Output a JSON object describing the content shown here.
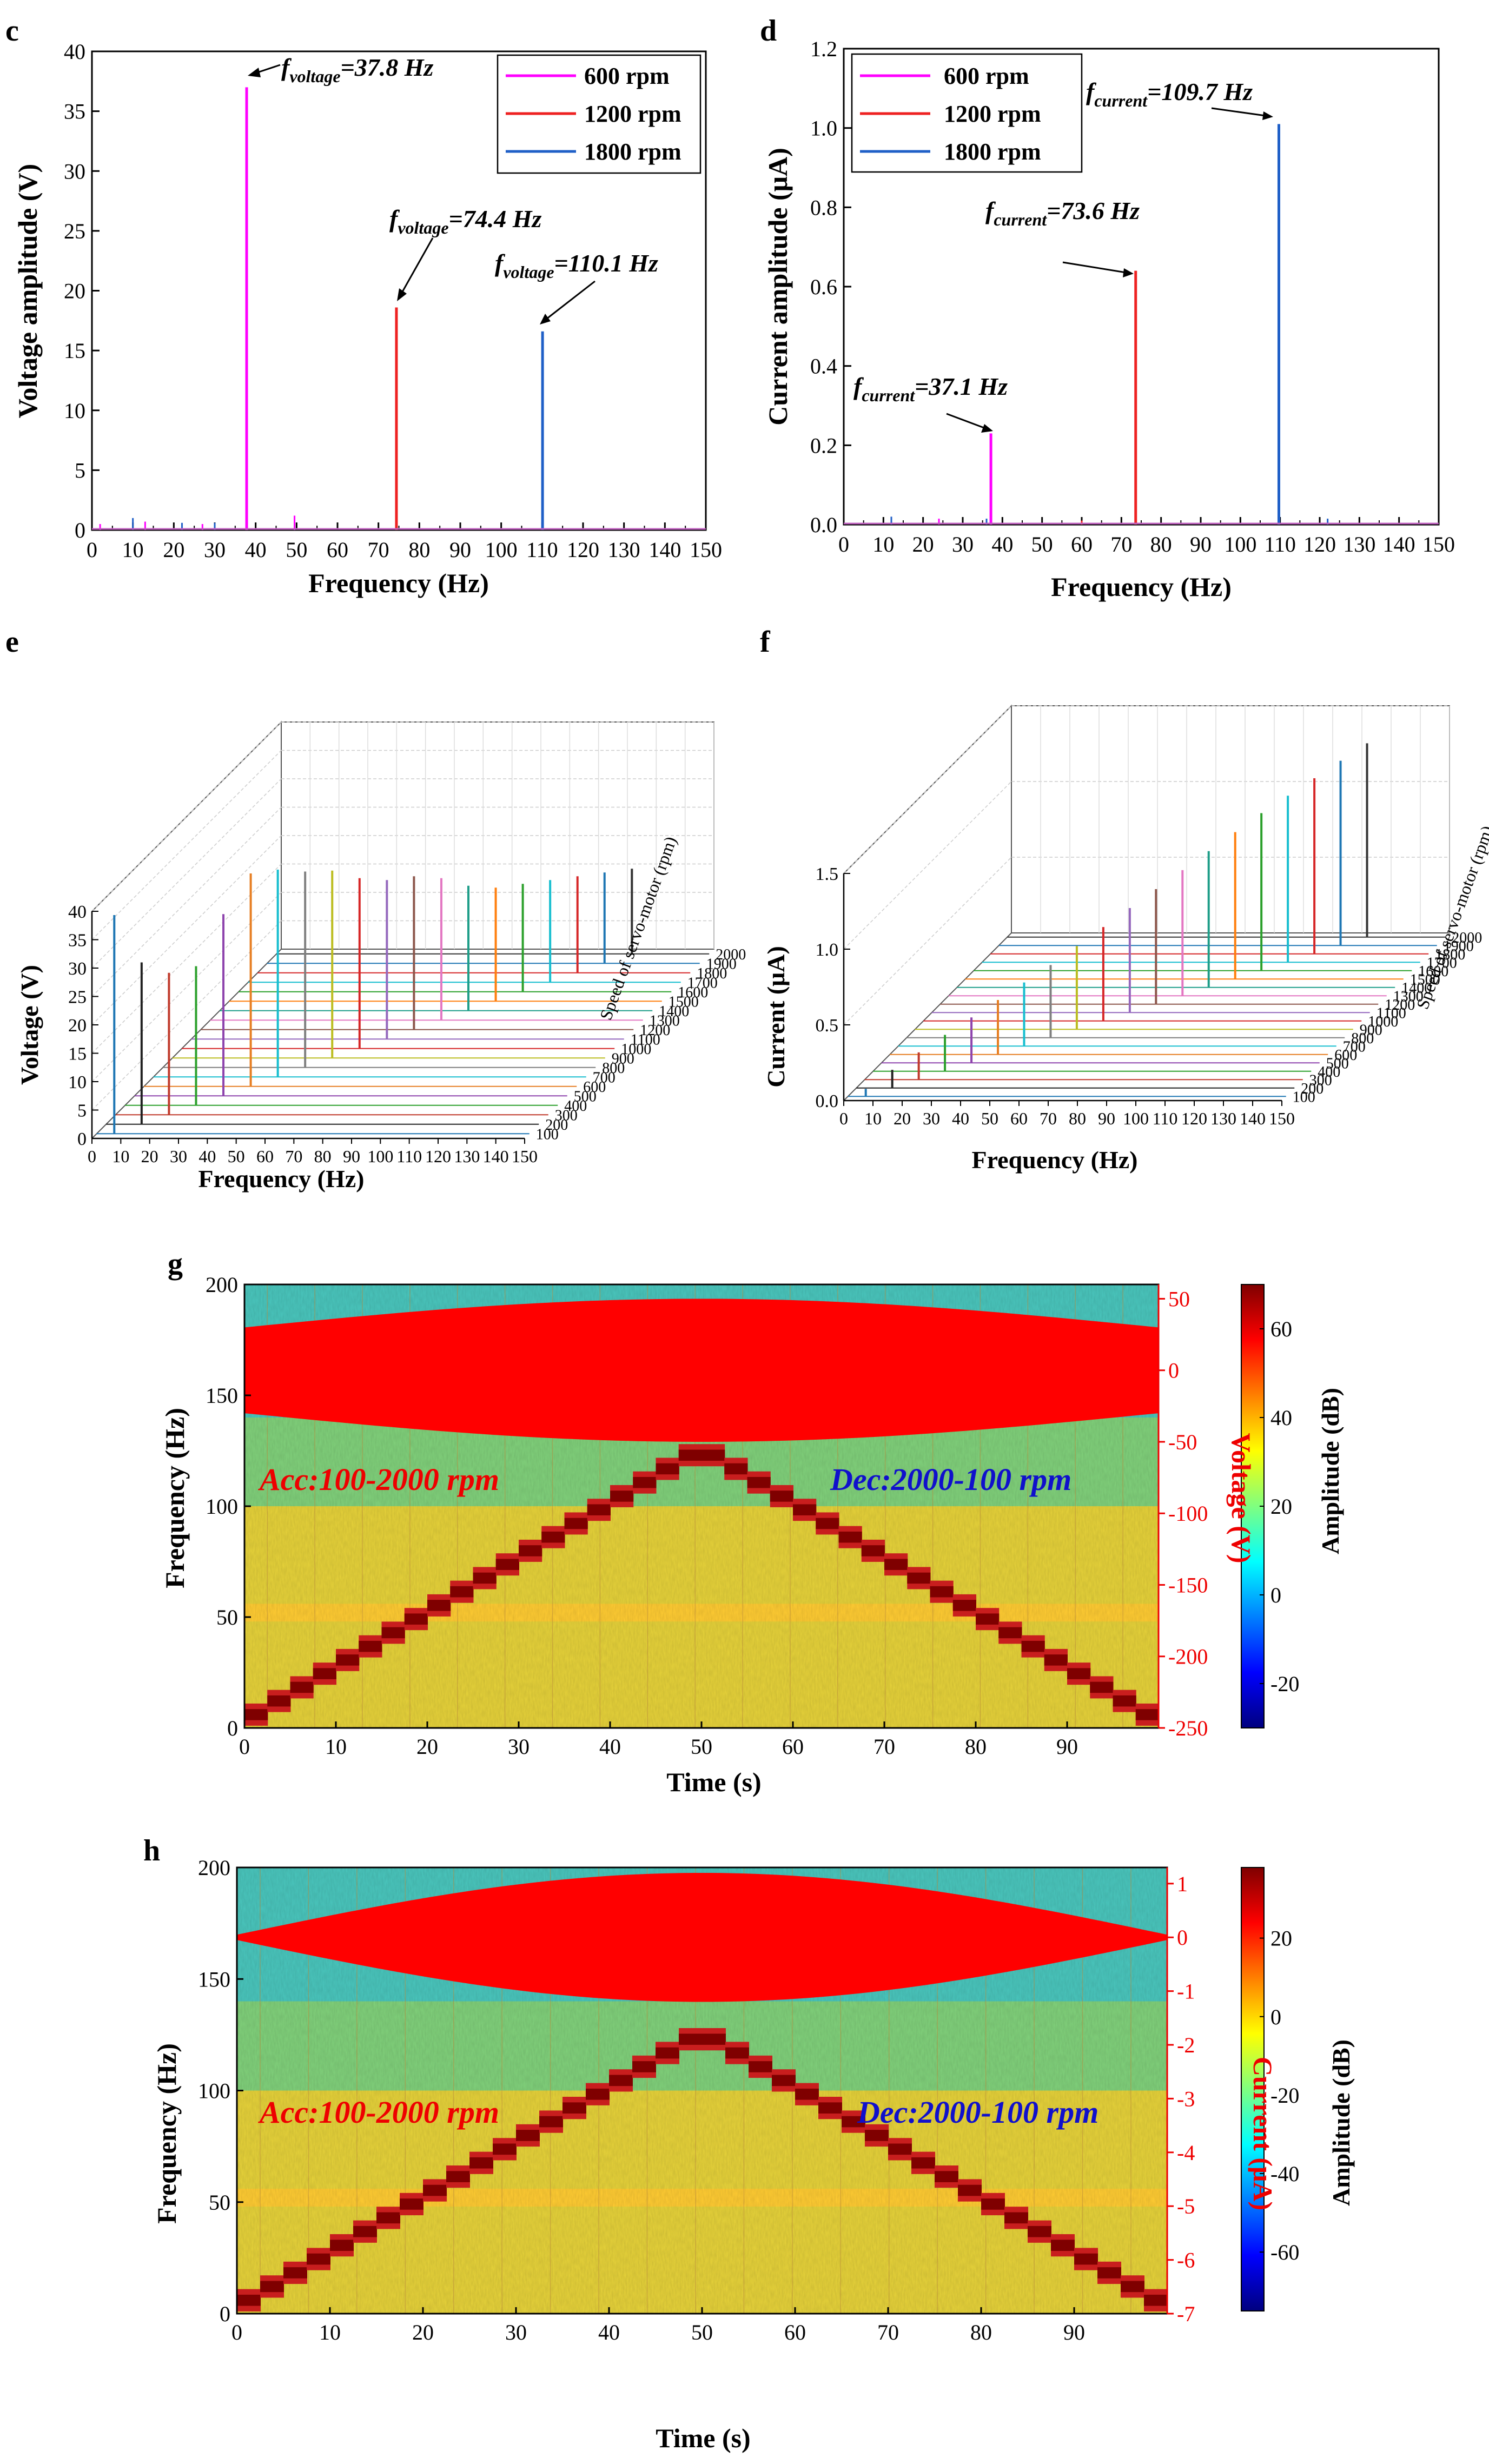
{
  "chart_data": [
    {
      "id": "c",
      "type": "line",
      "panel_label": "c",
      "xlabel": "Frequency (Hz)",
      "ylabel": "Voltage amplitude (V)",
      "xlim": [
        0,
        150
      ],
      "ylim": [
        0,
        40
      ],
      "xticks": [
        "0",
        "10",
        "20",
        "30",
        "40",
        "50",
        "60",
        "70",
        "80",
        "90",
        "100",
        "110",
        "120",
        "130",
        "140",
        "150"
      ],
      "yticks": [
        "0",
        "5",
        "10",
        "15",
        "20",
        "25",
        "30",
        "35",
        "40"
      ],
      "legend": "top-right",
      "series": [
        {
          "name": "600 rpm",
          "color": "#ff00ff",
          "peak_x": 37.8,
          "peak_y": 37.0
        },
        {
          "name": "1200 rpm",
          "color": "#ee2222",
          "peak_x": 74.4,
          "peak_y": 18.6
        },
        {
          "name": "1800 rpm",
          "color": "#1f5fc7",
          "peak_x": 110.1,
          "peak_y": 16.6
        }
      ],
      "noise": [
        {
          "x": 2,
          "y": 0.5,
          "color": "#ff00ff"
        },
        {
          "x": 10,
          "y": 1.0,
          "color": "#1f5fc7"
        },
        {
          "x": 13,
          "y": 0.7,
          "color": "#ff00ff"
        },
        {
          "x": 22,
          "y": 0.6,
          "color": "#1f5fc7"
        },
        {
          "x": 27,
          "y": 0.5,
          "color": "#ff00ff"
        },
        {
          "x": 30,
          "y": 0.6,
          "color": "#1f5fc7"
        },
        {
          "x": 49.5,
          "y": 1.2,
          "color": "#ff00ff"
        }
      ],
      "annotations": [
        {
          "base": "f",
          "sub": "voltage",
          "value": "=37.8 Hz"
        },
        {
          "base": "f",
          "sub": "voltage",
          "value": "=74.4 Hz"
        },
        {
          "base": "f",
          "sub": "voltage",
          "value": "=110.1 Hz"
        }
      ]
    },
    {
      "id": "d",
      "type": "line",
      "panel_label": "d",
      "xlabel": "Frequency (Hz)",
      "ylabel": "Current amplitude (μA)",
      "xlim": [
        0,
        150
      ],
      "ylim": [
        0,
        1.2
      ],
      "xticks": [
        "0",
        "10",
        "20",
        "30",
        "40",
        "50",
        "60",
        "70",
        "80",
        "90",
        "100",
        "110",
        "120",
        "130",
        "140",
        "150"
      ],
      "yticks": [
        "0.0",
        "0.2",
        "0.4",
        "0.6",
        "0.8",
        "1.0",
        "1.2"
      ],
      "legend": "top-left",
      "series": [
        {
          "name": "600 rpm",
          "color": "#ff00ff",
          "peak_x": 37.1,
          "peak_y": 0.23
        },
        {
          "name": "1200 rpm",
          "color": "#ee2222",
          "peak_x": 73.6,
          "peak_y": 0.64
        },
        {
          "name": "1800 rpm",
          "color": "#1f5fc7",
          "peak_x": 109.7,
          "peak_y": 1.01
        }
      ],
      "noise": [
        {
          "x": 12,
          "y": 0.02,
          "color": "#1f5fc7"
        },
        {
          "x": 24,
          "y": 0.015,
          "color": "#ff00ff"
        },
        {
          "x": 36,
          "y": 0.015,
          "color": "#1f5fc7"
        },
        {
          "x": 60,
          "y": 0.01,
          "color": "#ee2222"
        },
        {
          "x": 122,
          "y": 0.015,
          "color": "#1f5fc7"
        }
      ],
      "annotations": [
        {
          "base": "f",
          "sub": "current",
          "value": "=37.1 Hz"
        },
        {
          "base": "f",
          "sub": "current",
          "value": "=73.6 Hz"
        },
        {
          "base": "f",
          "sub": "current",
          "value": "=109.7 Hz"
        }
      ]
    },
    {
      "id": "e",
      "type": "line",
      "subtype": "3d-waterfall",
      "panel_label": "e",
      "xlabel": "Frequency (Hz)",
      "ylabel": "Voltage (V)",
      "zlabel": "Speed of servo-motor (rpm)",
      "xlim": [
        0,
        150
      ],
      "ylim": [
        0,
        40
      ],
      "xticks": [
        "0",
        "10",
        "20",
        "30",
        "40",
        "50",
        "60",
        "70",
        "80",
        "90",
        "100",
        "110",
        "120",
        "130",
        "140",
        "150"
      ],
      "yticks": [
        "0",
        "5",
        "10",
        "15",
        "20",
        "25",
        "30",
        "35",
        "40"
      ],
      "speeds": [
        "100",
        "200",
        "300",
        "400",
        "500",
        "600",
        "700",
        "800",
        "900",
        "1000",
        "1100",
        "1200",
        "1300",
        "1400",
        "1500",
        "1600",
        "1700",
        "1800",
        "1900",
        "2000"
      ],
      "peak_freq_hz": [
        6.1,
        12.3,
        18.5,
        24.6,
        30.8,
        37.0,
        43.1,
        49.3,
        55.4,
        61.6,
        67.8,
        73.9,
        80.1,
        86.2,
        92.4,
        98.5,
        104.7,
        110.9,
        117.0,
        123.2
      ],
      "peak_amp": [
        38.5,
        28.5,
        25.0,
        24.5,
        32.0,
        37.5,
        36.5,
        34.5,
        33.0,
        30.0,
        28.0,
        27.0,
        25.0,
        22.0,
        20.0,
        19.0,
        18.0,
        17.0,
        16.0,
        15.0
      ]
    },
    {
      "id": "f",
      "type": "line",
      "subtype": "3d-waterfall",
      "panel_label": "f",
      "xlabel": "Frequency (Hz)",
      "ylabel": "Current (μA)",
      "zlabel": "Speed of servo-motor (rpm)",
      "xlim": [
        0,
        150
      ],
      "ylim": [
        0,
        1.5
      ],
      "xticks": [
        "0",
        "10",
        "20",
        "30",
        "40",
        "50",
        "60",
        "70",
        "80",
        "90",
        "100",
        "110",
        "120",
        "130",
        "140",
        "150"
      ],
      "yticks": [
        "0.0",
        "0.5",
        "1.0",
        "1.5"
      ],
      "speeds": [
        "100",
        "200",
        "300",
        "400",
        "500",
        "600",
        "700",
        "800",
        "900",
        "1000",
        "1100",
        "1200",
        "1300",
        "1400",
        "1500",
        "1600",
        "1700",
        "1800",
        "1900",
        "2000"
      ],
      "peak_freq_hz": [
        6.1,
        12.3,
        18.5,
        24.6,
        30.8,
        37.0,
        43.1,
        49.3,
        55.4,
        61.6,
        67.8,
        73.9,
        80.1,
        86.2,
        92.4,
        98.5,
        104.7,
        110.9,
        117.0,
        123.2
      ],
      "peak_amp": [
        0.05,
        0.12,
        0.18,
        0.24,
        0.3,
        0.36,
        0.42,
        0.48,
        0.55,
        0.62,
        0.69,
        0.76,
        0.83,
        0.9,
        0.97,
        1.04,
        1.1,
        1.16,
        1.22,
        1.28
      ]
    },
    {
      "id": "g",
      "type": "heatmap",
      "panel_label": "g",
      "xlabel": "Time (s)",
      "ylabel": "Frequency (Hz)",
      "y2label": "Voltage (V)",
      "colorbar_label": "Amplitude (dB)",
      "xlim": [
        0,
        100
      ],
      "ylim": [
        0,
        200
      ],
      "y2lim": [
        -250,
        60
      ],
      "colorbar_lim": [
        -30,
        70
      ],
      "xticks": [
        "0",
        "10",
        "20",
        "30",
        "40",
        "50",
        "60",
        "70",
        "80",
        "90"
      ],
      "yticks": [
        "0",
        "50",
        "100",
        "150",
        "200"
      ],
      "y2ticks": [
        "-250",
        "-200",
        "-150",
        "-100",
        "-50",
        "0",
        "50"
      ],
      "colorbar_ticks": [
        "-20",
        "0",
        "20",
        "40",
        "60"
      ],
      "ridge": {
        "start_hz": 6,
        "peak_hz": 123,
        "peak_time_s": 50
      },
      "signal_envelope_v": {
        "min_amp": 30,
        "max_amp": 50
      },
      "left_annotation": "Acc:100-2000 rpm",
      "right_annotation": "Dec:2000-100 rpm"
    },
    {
      "id": "h",
      "type": "heatmap",
      "panel_label": "h",
      "xlabel": "Time (s)",
      "ylabel": "Frequency (Hz)",
      "y2label": "Current (μA)",
      "colorbar_label": "Amplitude (dB)",
      "xlim": [
        0,
        100
      ],
      "ylim": [
        0,
        200
      ],
      "y2lim": [
        -7,
        1.3
      ],
      "colorbar_lim": [
        -75,
        38
      ],
      "xticks": [
        "0",
        "10",
        "20",
        "30",
        "40",
        "50",
        "60",
        "70",
        "80",
        "90"
      ],
      "yticks": [
        "0",
        "50",
        "100",
        "150",
        "200"
      ],
      "y2ticks": [
        "-7",
        "-6",
        "-5",
        "-4",
        "-3",
        "-2",
        "-1",
        "0",
        "1"
      ],
      "colorbar_ticks": [
        "-60",
        "-40",
        "-20",
        "0",
        "20"
      ],
      "ridge": {
        "start_hz": 6,
        "peak_hz": 123,
        "peak_time_s": 50
      },
      "signal_envelope_ua": {
        "min_amp": 0.05,
        "max_amp": 1.2
      },
      "left_annotation": "Acc:100-2000 rpm",
      "right_annotation": "Dec:2000-100 rpm"
    }
  ]
}
